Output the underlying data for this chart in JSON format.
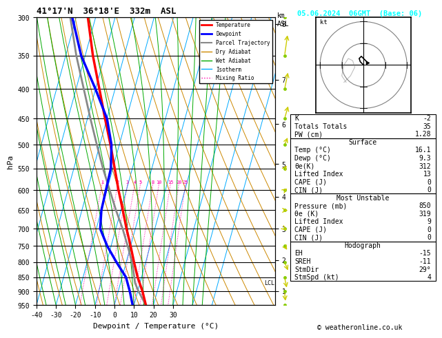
{
  "title": "41°17'N  36°18'E  332m  ASL",
  "date_title": "05.06.2024  06GMT  (Base: 06)",
  "xlabel": "Dewpoint / Temperature (°C)",
  "ylabel_left": "hPa",
  "km_ticks": [
    1,
    2,
    3,
    4,
    5,
    6,
    7,
    8
  ],
  "pressure_levels": [
    300,
    350,
    400,
    450,
    500,
    550,
    600,
    650,
    700,
    750,
    800,
    850,
    900,
    950
  ],
  "pressure_ticks": [
    300,
    350,
    400,
    450,
    500,
    550,
    600,
    650,
    700,
    750,
    800,
    850,
    900,
    950
  ],
  "temp_ticks": [
    -40,
    -30,
    -20,
    -10,
    0,
    10,
    20,
    30
  ],
  "lcl_label": "LCL",
  "lcl_pressure": 870,
  "temp_profile": {
    "pressures": [
      950,
      900,
      850,
      800,
      750,
      700,
      650,
      600,
      550,
      500,
      450,
      400,
      350,
      300
    ],
    "temps": [
      16.1,
      12.5,
      8.0,
      4.0,
      0.0,
      -4.5,
      -9.0,
      -14.0,
      -19.0,
      -24.5,
      -31.0,
      -38.0,
      -46.0,
      -54.0
    ]
  },
  "dewp_profile": {
    "pressures": [
      950,
      900,
      850,
      800,
      750,
      700,
      650,
      600,
      550,
      500,
      450,
      400,
      350,
      300
    ],
    "temps": [
      9.3,
      6.0,
      2.0,
      -5.0,
      -12.0,
      -18.0,
      -20.0,
      -20.5,
      -21.0,
      -24.0,
      -30.0,
      -40.0,
      -52.0,
      -62.0
    ]
  },
  "parcel_profile": {
    "pressures": [
      950,
      900,
      870,
      800,
      750,
      700,
      650,
      600,
      550,
      500,
      450,
      400,
      350,
      300
    ],
    "temps": [
      16.1,
      10.5,
      7.5,
      3.0,
      -1.5,
      -6.5,
      -12.5,
      -18.5,
      -25.0,
      -31.5,
      -38.5,
      -46.0,
      -54.5,
      -63.0
    ]
  },
  "bg_color": "#ffffff",
  "temp_color": "#ff0000",
  "dewp_color": "#0000ff",
  "parcel_color": "#888888",
  "dry_adiabat_color": "#cc8800",
  "wet_adiabat_color": "#00aa00",
  "isotherm_color": "#00aaff",
  "mixing_ratio_color": "#ff00aa",
  "stats_box": {
    "K": "-2",
    "Totals Totals": "35",
    "PW (cm)": "1.28",
    "Surface": {
      "Temp (°C)": "16.1",
      "Dewp (°C)": "9.3",
      "θe(K)": "312",
      "Lifted Index": "13",
      "CAPE (J)": "0",
      "CIN (J)": "0"
    },
    "Most Unstable": {
      "Pressure (mb)": "850",
      "θe (K)": "319",
      "Lifted Index": "9",
      "CAPE (J)": "0",
      "CIN (J)": "0"
    },
    "Hodograph": {
      "EH": "-15",
      "SREH": "-11",
      "StmDir": "29°",
      "StmSpd (kt)": "4"
    }
  },
  "copyright": "© weatheronline.co.uk"
}
